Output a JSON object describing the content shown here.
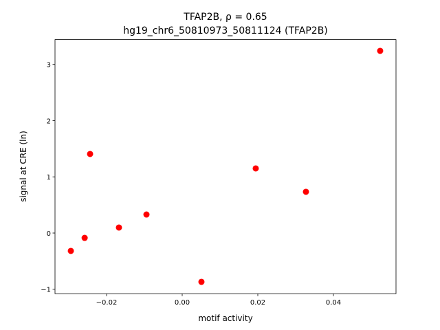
{
  "chart_data": {
    "type": "scatter",
    "title": "TFAP2B, ρ = 0.65",
    "subtitle": "hg19_chr6_50810973_50811124 (TFAP2B)",
    "x_label": "motif activity",
    "y_label": "signal at CRE (ln)",
    "color": "#ff0000",
    "x": [
      -0.02945,
      -0.0258,
      -0.02436,
      -0.01673,
      -0.00945,
      0.00509,
      0.01945,
      0.03273,
      0.05236
    ],
    "values": [
      -0.318,
      -0.086,
      1.407,
      0.098,
      0.33,
      -0.868,
      1.15,
      0.734,
      3.242
    ],
    "xlim": [
      -0.03364,
      0.05655
    ],
    "ylim": [
      -1.079,
      3.442
    ],
    "xticks": [
      {
        "value": -0.02,
        "label": "−0.02"
      },
      {
        "value": 0,
        "label": "0.00"
      },
      0.02,
      0.04
    ],
    "yticks": [
      {
        "value": -1,
        "label": "−1"
      },
      0,
      1,
      2,
      3
    ],
    "grid": false
  }
}
